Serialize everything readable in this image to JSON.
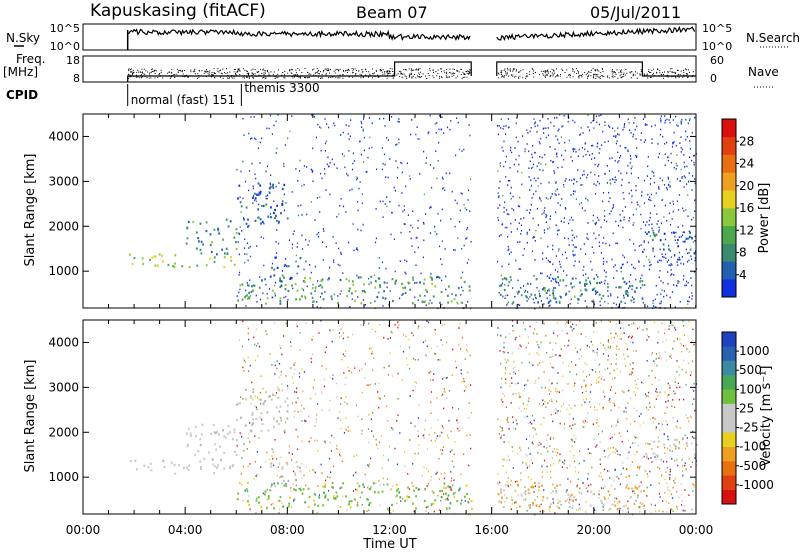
{
  "header": {
    "station": "Kapuskasing (fitACF)",
    "beam": "Beam 07",
    "date": "05/Jul/2011"
  },
  "strip_labels": {
    "nsky": "N.Sky",
    "freq_line1": "Freq.",
    "freq_line2": "[MHz]",
    "cpid": "CPID",
    "nsearch": "N.Search",
    "nave": "Nave",
    "nsky_ticks": [
      "10^5",
      "10^0"
    ],
    "nsearch_ticks": [
      "10^5",
      "10^0"
    ],
    "freq_ticks": [
      "18",
      "8"
    ],
    "nave_ticks": [
      "60",
      "0"
    ]
  },
  "cpid_labels": [
    {
      "text": "normal (fast) 151",
      "time_hours": 1.75
    },
    {
      "text": "themis 3300",
      "time_hours": 6.2
    }
  ],
  "power_panel": {
    "ylabel": "Slant Range [km]",
    "yticks": [
      "1000",
      "2000",
      "3000",
      "4000"
    ],
    "colorbar_label": "Power [dB]",
    "colorbar_ticks": [
      "4",
      "8",
      "12",
      "16",
      "20",
      "24",
      "28"
    ],
    "colorbar_colors": [
      "#1030e0",
      "#2060b0",
      "#3a8a70",
      "#4ca84c",
      "#8cc83c",
      "#e8d020",
      "#f0a020",
      "#e87010",
      "#e04010",
      "#d81010"
    ]
  },
  "velocity_panel": {
    "ylabel": "Slant Range [km]",
    "yticks": [
      "1000",
      "2000",
      "3000",
      "4000"
    ],
    "colorbar_label": "Velocity [m s⁻¹]",
    "colorbar_ticks": [
      "1000",
      "500",
      "100",
      "25",
      "-25",
      "-100",
      "-500",
      "-1000"
    ],
    "colorbar_colors": [
      "#2040c0",
      "#2a60b0",
      "#3a8aa0",
      "#48a858",
      "#70c040",
      "#c8c8c8",
      "#c8c8c8",
      "#e8d020",
      "#f0a020",
      "#e87010",
      "#e04010",
      "#d81010"
    ]
  },
  "xaxis": {
    "label": "Time UT",
    "ticks": [
      "00:00",
      "04:00",
      "08:00",
      "12:00",
      "16:00",
      "20:00",
      "00:00"
    ]
  },
  "chart_data": [
    {
      "type": "heatmap",
      "title": "Kapuskasing (fitACF) Beam 07 05/Jul/2011",
      "quantity": "Power",
      "xlabel": "Time UT",
      "ylabel": "Slant Range [km]",
      "xlim_hours": [
        0,
        24
      ],
      "ylim_km": [
        180,
        4500
      ],
      "zlabel": "Power [dB]",
      "zlim": [
        0,
        30
      ],
      "data_gap_hours": [
        15.2,
        16.2
      ],
      "echo_regions": [
        {
          "t_start": 1.8,
          "t_end": 6.0,
          "range_start_km": 1100,
          "range_end_km": 1400,
          "power_db": 14
        },
        {
          "t_start": 4.0,
          "t_end": 6.0,
          "range_start_km": 1400,
          "range_end_km": 2200,
          "power_db": 8
        },
        {
          "t_start": 6.0,
          "t_end": 8.0,
          "range_start_km": 2000,
          "range_end_km": 3000,
          "power_db": 5
        },
        {
          "t_start": 6.0,
          "t_end": 15.2,
          "range_start_km": 300,
          "range_end_km": 900,
          "power_db": 10
        },
        {
          "t_start": 7.3,
          "t_end": 8.5,
          "range_start_km": 800,
          "range_end_km": 1400,
          "power_db": 5
        },
        {
          "t_start": 22.0,
          "t_end": 24.0,
          "range_start_km": 1400,
          "range_end_km": 1900,
          "power_db": 5
        },
        {
          "t_start": 16.2,
          "t_end": 22.0,
          "range_start_km": 300,
          "range_end_km": 900,
          "power_db": 8
        }
      ]
    },
    {
      "type": "heatmap",
      "quantity": "Velocity",
      "xlabel": "Time UT",
      "ylabel": "Slant Range [km]",
      "xlim_hours": [
        0,
        24
      ],
      "ylim_km": [
        180,
        4500
      ],
      "zlabel": "Velocity [m s-1]",
      "zlim": [
        -1000,
        1000
      ],
      "data_gap_hours": [
        15.2,
        16.2
      ],
      "echo_regions": [
        {
          "t_start": 1.8,
          "t_end": 6.0,
          "range_start_km": 1100,
          "range_end_km": 1400,
          "velocity": 0
        },
        {
          "t_start": 4.0,
          "t_end": 6.0,
          "range_start_km": 1400,
          "range_end_km": 2200,
          "velocity": 0
        },
        {
          "t_start": 6.0,
          "t_end": 8.0,
          "range_start_km": 2000,
          "range_end_km": 3000,
          "velocity": 0
        },
        {
          "t_start": 6.0,
          "t_end": 15.2,
          "range_start_km": 300,
          "range_end_km": 900,
          "velocity": 100
        },
        {
          "t_start": 7.3,
          "t_end": 8.5,
          "range_start_km": 800,
          "range_end_km": 1400,
          "velocity": 0
        },
        {
          "t_start": 22.0,
          "t_end": 24.0,
          "range_start_km": 1400,
          "range_end_km": 1900,
          "velocity": 0
        },
        {
          "t_start": 16.2,
          "t_end": 22.0,
          "range_start_km": 300,
          "range_end_km": 900,
          "velocity": -100
        }
      ]
    }
  ]
}
